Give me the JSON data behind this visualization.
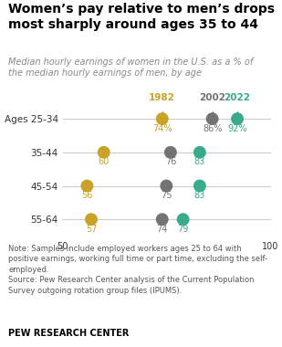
{
  "title": "Women’s pay relative to men’s drops\nmost sharply around ages 35 to 44",
  "subtitle": "Median hourly earnings of women in the U.S. as a % of\nthe median hourly earnings of men, by age",
  "note": "Note: Samples include employed workers ages 25 to 64 with\npositive earnings, working full time or part time, excluding the self-\nemployed.\nSource: Pew Research Center analysis of the Current Population\nSurvey outgoing rotation group files (IPUMS).",
  "footer": "PEW RESEARCH CENTER",
  "age_groups": [
    "Ages 25-34",
    "35-44",
    "45-54",
    "55-64"
  ],
  "years": [
    "1982",
    "2002",
    "2022"
  ],
  "year_colors": [
    "#c9a227",
    "#737373",
    "#3aaa8c"
  ],
  "data": {
    "Ages 25-34": [
      74,
      86,
      92
    ],
    "35-44": [
      60,
      76,
      83
    ],
    "45-54": [
      56,
      75,
      83
    ],
    "55-64": [
      57,
      74,
      79
    ]
  },
  "xmin": 50,
  "xmax": 100,
  "background_color": "#ffffff",
  "title_color": "#000000",
  "subtitle_color": "#888888",
  "note_color": "#555555",
  "footer_color": "#000000",
  "line_color": "#cccccc",
  "tick_color": "#333333"
}
